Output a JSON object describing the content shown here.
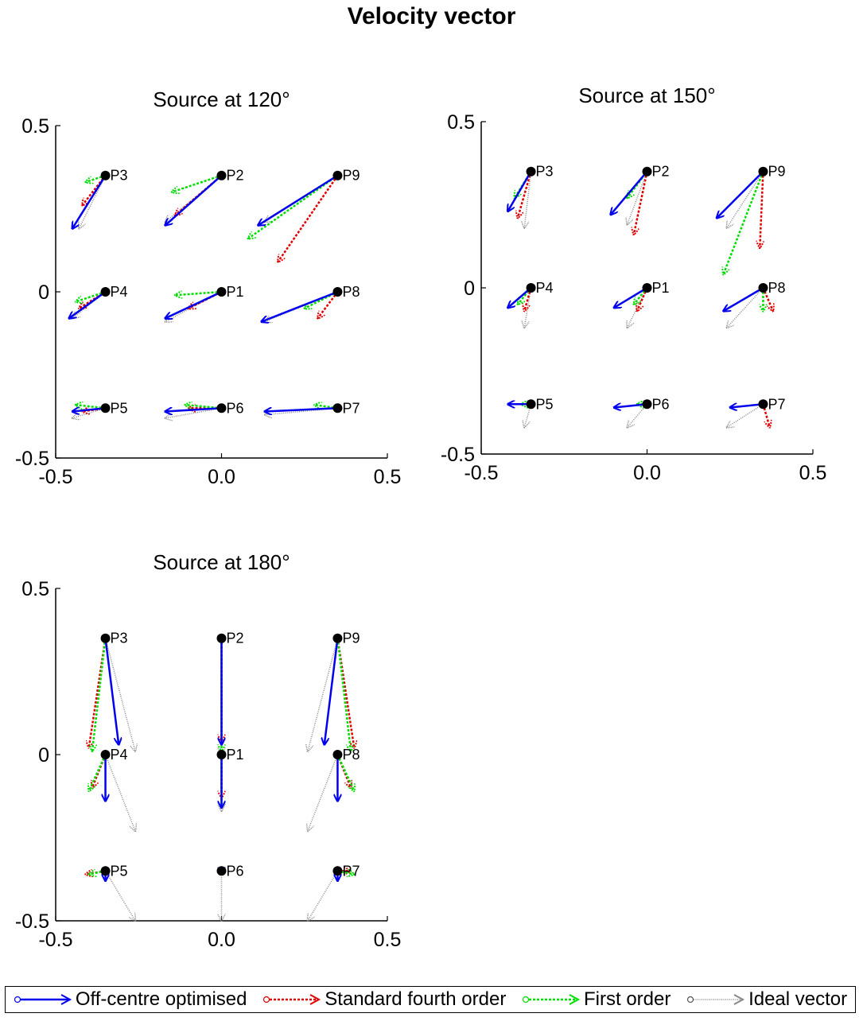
{
  "title": "Velocity vector",
  "colors": {
    "off_centre": "#0000ee",
    "fourth": "#e00000",
    "first": "#00dd00",
    "ideal": "#888888"
  },
  "legend": [
    {
      "key": "off_centre",
      "label": "Off-centre optimised"
    },
    {
      "key": "fourth",
      "label": "Standard fourth order"
    },
    {
      "key": "first",
      "label": "First order"
    },
    {
      "key": "ideal",
      "label": "Ideal vector"
    }
  ],
  "chart_data": [
    {
      "type": "scatter",
      "title": "Source at 120°",
      "xlim": [
        -0.5,
        0.5
      ],
      "ylim": [
        -0.5,
        0.5
      ],
      "xticks": [
        "-0.5",
        "0.0",
        "0.5"
      ],
      "yticks": [
        "-0.5",
        "0",
        "0.5"
      ],
      "points": [
        {
          "label": "P1",
          "x": 0.0,
          "y": 0.0
        },
        {
          "label": "P2",
          "x": 0.0,
          "y": 0.35
        },
        {
          "label": "P3",
          "x": -0.35,
          "y": 0.35
        },
        {
          "label": "P4",
          "x": -0.35,
          "y": 0.0
        },
        {
          "label": "P5",
          "x": -0.35,
          "y": -0.35
        },
        {
          "label": "P6",
          "x": 0.0,
          "y": -0.35
        },
        {
          "label": "P7",
          "x": 0.35,
          "y": -0.35
        },
        {
          "label": "P8",
          "x": 0.35,
          "y": 0.0
        },
        {
          "label": "P9",
          "x": 0.35,
          "y": 0.35
        }
      ],
      "series": [
        {
          "key": "ideal",
          "vectors": [
            [
              -0.17,
              -0.09
            ],
            [
              -0.17,
              -0.14
            ],
            [
              -0.08,
              -0.16
            ],
            [
              -0.1,
              -0.08
            ],
            [
              -0.1,
              -0.03
            ],
            [
              -0.17,
              -0.03
            ],
            [
              -0.22,
              -0.02
            ],
            [
              -0.22,
              -0.09
            ],
            [
              -0.22,
              -0.14
            ]
          ]
        },
        {
          "key": "fourth",
          "vectors": [
            [
              -0.1,
              -0.05
            ],
            [
              -0.14,
              -0.12
            ],
            [
              -0.07,
              -0.09
            ],
            [
              -0.08,
              -0.05
            ],
            [
              -0.07,
              -0.01
            ],
            [
              -0.1,
              0.0
            ],
            [
              0.0,
              0.0
            ],
            [
              -0.06,
              -0.08
            ],
            [
              -0.18,
              -0.26
            ]
          ]
        },
        {
          "key": "first",
          "vectors": [
            [
              -0.14,
              -0.01
            ],
            [
              -0.15,
              -0.05
            ],
            [
              -0.06,
              -0.02
            ],
            [
              -0.09,
              -0.03
            ],
            [
              -0.09,
              0.01
            ],
            [
              -0.11,
              0.01
            ],
            [
              -0.07,
              0.01
            ],
            [
              -0.1,
              -0.05
            ],
            [
              -0.27,
              -0.19
            ]
          ]
        },
        {
          "key": "off_centre",
          "vectors": [
            [
              -0.17,
              -0.08
            ],
            [
              -0.17,
              -0.15
            ],
            [
              -0.1,
              -0.16
            ],
            [
              -0.11,
              -0.08
            ],
            [
              -0.1,
              -0.01
            ],
            [
              -0.17,
              -0.01
            ],
            [
              -0.22,
              -0.01
            ],
            [
              -0.23,
              -0.09
            ],
            [
              -0.24,
              -0.15
            ]
          ]
        }
      ]
    },
    {
      "type": "scatter",
      "title": "Source at 150°",
      "xlim": [
        -0.5,
        0.5
      ],
      "ylim": [
        -0.5,
        0.5
      ],
      "xticks": [
        "-0.5",
        "0.0",
        "0.5"
      ],
      "yticks": [
        "-0.5",
        "0",
        "0.5"
      ],
      "points": [
        {
          "label": "P1",
          "x": 0.0,
          "y": 0.0
        },
        {
          "label": "P2",
          "x": 0.0,
          "y": 0.35
        },
        {
          "label": "P3",
          "x": -0.35,
          "y": 0.35
        },
        {
          "label": "P4",
          "x": -0.35,
          "y": 0.0
        },
        {
          "label": "P5",
          "x": -0.35,
          "y": -0.35
        },
        {
          "label": "P6",
          "x": 0.0,
          "y": -0.35
        },
        {
          "label": "P7",
          "x": 0.35,
          "y": -0.35
        },
        {
          "label": "P8",
          "x": 0.35,
          "y": 0.0
        },
        {
          "label": "P9",
          "x": 0.35,
          "y": 0.35
        }
      ],
      "series": [
        {
          "key": "ideal",
          "vectors": [
            [
              -0.06,
              -0.12
            ],
            [
              -0.06,
              -0.16
            ],
            [
              -0.02,
              -0.17
            ],
            [
              -0.02,
              -0.12
            ],
            [
              -0.02,
              -0.07
            ],
            [
              -0.06,
              -0.07
            ],
            [
              -0.11,
              -0.07
            ],
            [
              -0.11,
              -0.12
            ],
            [
              -0.11,
              -0.17
            ]
          ]
        },
        {
          "key": "fourth",
          "vectors": [
            [
              -0.03,
              -0.07
            ],
            [
              -0.04,
              -0.19
            ],
            [
              -0.04,
              -0.14
            ],
            [
              -0.02,
              -0.07
            ],
            [
              0.0,
              0.0
            ],
            [
              0.0,
              0.0
            ],
            [
              0.02,
              -0.07
            ],
            [
              0.03,
              -0.07
            ],
            [
              -0.01,
              -0.23
            ]
          ]
        },
        {
          "key": "first",
          "vectors": [
            [
              -0.04,
              -0.05
            ],
            [
              -0.06,
              -0.08
            ],
            [
              -0.05,
              -0.08
            ],
            [
              -0.04,
              -0.05
            ],
            [
              -0.03,
              0.0
            ],
            [
              -0.03,
              0.0
            ],
            [
              0.0,
              0.0
            ],
            [
              0.0,
              -0.07
            ],
            [
              -0.12,
              -0.31
            ]
          ]
        },
        {
          "key": "off_centre",
          "vectors": [
            [
              -0.1,
              -0.06
            ],
            [
              -0.11,
              -0.13
            ],
            [
              -0.07,
              -0.12
            ],
            [
              -0.07,
              -0.06
            ],
            [
              -0.07,
              0.0
            ],
            [
              -0.1,
              -0.01
            ],
            [
              -0.1,
              -0.01
            ],
            [
              -0.12,
              -0.07
            ],
            [
              -0.14,
              -0.14
            ]
          ]
        }
      ]
    },
    {
      "type": "scatter",
      "title": "Source at 180°",
      "xlim": [
        -0.5,
        0.5
      ],
      "ylim": [
        -0.5,
        0.5
      ],
      "xticks": [
        "-0.5",
        "0.0",
        "0.5"
      ],
      "yticks": [
        "-0.5",
        "0",
        "0.5"
      ],
      "points": [
        {
          "label": "P1",
          "x": 0.0,
          "y": 0.0
        },
        {
          "label": "P2",
          "x": 0.0,
          "y": 0.35
        },
        {
          "label": "P3",
          "x": -0.35,
          "y": 0.35
        },
        {
          "label": "P4",
          "x": -0.35,
          "y": 0.0
        },
        {
          "label": "P5",
          "x": -0.35,
          "y": -0.35
        },
        {
          "label": "P6",
          "x": 0.0,
          "y": -0.35
        },
        {
          "label": "P7",
          "x": 0.35,
          "y": -0.35
        },
        {
          "label": "P8",
          "x": 0.35,
          "y": 0.0
        },
        {
          "label": "P9",
          "x": 0.35,
          "y": 0.35
        }
      ],
      "series": [
        {
          "key": "ideal",
          "vectors": [
            [
              0.0,
              -0.17
            ],
            [
              0.0,
              -0.35
            ],
            [
              0.09,
              -0.34
            ],
            [
              0.09,
              -0.23
            ],
            [
              0.09,
              -0.15
            ],
            [
              0.0,
              -0.15
            ],
            [
              -0.09,
              -0.15
            ],
            [
              -0.09,
              -0.23
            ],
            [
              -0.09,
              -0.34
            ]
          ]
        },
        {
          "key": "fourth",
          "vectors": [
            [
              0.0,
              -0.13
            ],
            [
              0.0,
              -0.31
            ],
            [
              -0.05,
              -0.33
            ],
            [
              -0.04,
              -0.1
            ],
            [
              -0.06,
              -0.01
            ],
            [
              0.0,
              0.0
            ],
            [
              0.04,
              0.0
            ],
            [
              0.04,
              -0.1
            ],
            [
              0.05,
              -0.33
            ]
          ]
        },
        {
          "key": "first",
          "vectors": [
            [
              0.0,
              -0.16
            ],
            [
              0.0,
              -0.34
            ],
            [
              -0.04,
              -0.34
            ],
            [
              -0.05,
              -0.11
            ],
            [
              -0.05,
              -0.01
            ],
            [
              0.0,
              0.0
            ],
            [
              0.05,
              -0.01
            ],
            [
              0.05,
              -0.11
            ],
            [
              0.04,
              -0.34
            ]
          ]
        },
        {
          "key": "off_centre",
          "vectors": [
            [
              0.0,
              -0.16
            ],
            [
              0.0,
              -0.32
            ],
            [
              0.04,
              -0.32
            ],
            [
              0.0,
              -0.14
            ],
            [
              0.0,
              -0.03
            ],
            [
              0.0,
              -0.01
            ],
            [
              0.0,
              -0.03
            ],
            [
              0.0,
              -0.14
            ],
            [
              -0.04,
              -0.32
            ]
          ]
        }
      ]
    }
  ]
}
